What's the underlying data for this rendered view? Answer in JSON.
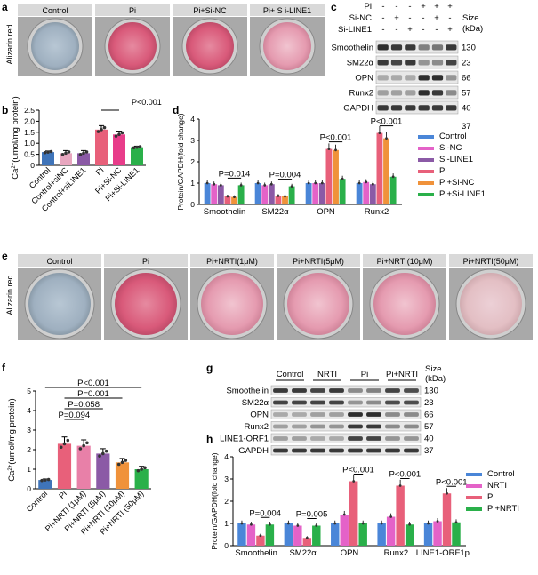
{
  "panels": {
    "a": {
      "letter": "a",
      "ylabel": "Alizarin red",
      "labels": [
        "Control",
        "Pi",
        "Pi+Si-NC",
        "Pi+ S i-LINE1"
      ]
    },
    "b": {
      "letter": "b",
      "ptext": "P<0.001"
    },
    "c": {
      "letter": "c",
      "rows": [
        "Pi",
        "Si-NC",
        "Si-LINE1"
      ],
      "signs": [
        [
          "-",
          "-",
          "-",
          "+",
          "+",
          "+"
        ],
        [
          "-",
          "+",
          "-",
          "-",
          "+",
          "-"
        ],
        [
          "-",
          "-",
          "+",
          "-",
          "-",
          "+"
        ]
      ],
      "size_label": "Size",
      "kda_label": "(kDa)",
      "bands": [
        {
          "name": "Smoothelin",
          "size": "130"
        },
        {
          "name": "SM22α",
          "size": "23"
        },
        {
          "name": "OPN",
          "size": "66"
        },
        {
          "name": "Runx2",
          "size": "57"
        },
        {
          "name": "GAPDH",
          "size": "40"
        }
      ],
      "extra_size": "37"
    },
    "d": {
      "letter": "d",
      "pvals": [
        "P=0.014",
        "P=0.004",
        "P<0.001",
        "P<0.001"
      ]
    },
    "e": {
      "letter": "e",
      "ylabel": "Alizarin red",
      "labels": [
        "Control",
        "Pi",
        "Pi+NRTI(1μM)",
        "Pi+NRTI(5μM)",
        "Pi+NRTI(10μM)",
        "Pi+NRTI(50μM)"
      ]
    },
    "f": {
      "letter": "f",
      "pvals": [
        "P<0.001",
        "P=0.001",
        "P=0.058",
        "P=0.094"
      ]
    },
    "g": {
      "letter": "g",
      "groups": [
        "Control",
        "NRTI",
        "Pi",
        "Pi+NRTI"
      ],
      "size_label": "Size",
      "kda_label": "(kDa)",
      "bands": [
        {
          "name": "Smoothelin",
          "size": "130"
        },
        {
          "name": "SM22α",
          "size": "23"
        },
        {
          "name": "OPN",
          "size": "66"
        },
        {
          "name": "Runx2",
          "size": "57"
        },
        {
          "name": "LINE1-ORF1",
          "size": "40"
        },
        {
          "name": "GAPDH",
          "size": "37"
        }
      ]
    },
    "h": {
      "letter": "h",
      "pvals": [
        "P=0.004",
        "P=0.005",
        "P<0.001",
        "P<0.001",
        "P<0.001"
      ]
    }
  },
  "chart_data": [
    {
      "panel": "b",
      "type": "bar",
      "title": "",
      "ylabel": "Ca2+(umol/mg protein)",
      "categories": [
        "Control",
        "Control+siNC",
        "Control+siLINE1",
        "Pi",
        "Pi+Si-NC",
        "Pi+Si-LINE1"
      ],
      "values": [
        0.6,
        0.55,
        0.55,
        1.62,
        1.4,
        0.82
      ],
      "errors": [
        0.05,
        0.12,
        0.12,
        0.18,
        0.15,
        0.05
      ],
      "colors": [
        "#3f74b9",
        "#e8a6bf",
        "#8b5aa6",
        "#e8607a",
        "#e83c8a",
        "#2ab04a"
      ],
      "yticks": [
        "0",
        "0.5",
        "1.0",
        "1.5",
        "2.0",
        "2.5"
      ],
      "ylim": [
        0,
        2.5
      ]
    },
    {
      "panel": "d",
      "type": "bar",
      "ylabel": "Protein/GAPDH(fold change)",
      "categories": [
        "Smoothelin",
        "SM22α",
        "OPN",
        "Runx2"
      ],
      "series": [
        {
          "name": "Control",
          "values": [
            1.0,
            1.0,
            1.0,
            1.0
          ],
          "color": "#4a86d8"
        },
        {
          "name": "Si-NC",
          "values": [
            0.95,
            0.9,
            1.0,
            1.05
          ],
          "color": "#e462c8"
        },
        {
          "name": "Si-LINE1",
          "values": [
            0.9,
            0.95,
            1.0,
            0.95
          ],
          "color": "#8b5aa6"
        },
        {
          "name": "Pi",
          "values": [
            0.38,
            0.4,
            2.6,
            3.35
          ],
          "color": "#e8607a"
        },
        {
          "name": "Pi+Si-NC",
          "values": [
            0.35,
            0.38,
            2.55,
            3.1
          ],
          "color": "#f0923a"
        },
        {
          "name": "Pi+Si-LINE1",
          "values": [
            0.9,
            0.85,
            1.2,
            1.3
          ],
          "color": "#2ab04a"
        }
      ],
      "yticks": [
        "0",
        "1",
        "2",
        "3",
        "4"
      ],
      "ylim": [
        0,
        4
      ]
    },
    {
      "panel": "f",
      "type": "bar",
      "ylabel": "Ca2+(umol/mg protein)",
      "categories": [
        "Control",
        "Pi",
        "Pi+NRTI (1μM)",
        "Pi+NRTI (5μM)",
        "Pi+NRTI (10μM)",
        "Pi+NRTI (50μM)"
      ],
      "values": [
        0.45,
        2.3,
        2.2,
        1.8,
        1.35,
        1.0
      ],
      "errors": [
        0.05,
        0.35,
        0.3,
        0.25,
        0.2,
        0.15
      ],
      "colors": [
        "#3f74b9",
        "#e8607a",
        "#e880a8",
        "#8b5aa6",
        "#f0923a",
        "#2ab04a"
      ],
      "yticks": [
        "0",
        "1",
        "2",
        "3",
        "4",
        "5"
      ],
      "ylim": [
        0,
        5
      ]
    },
    {
      "panel": "h",
      "type": "bar",
      "ylabel": "Protein/GAPDH(fold change)",
      "categories": [
        "Smoothelin",
        "SM22α",
        "OPN",
        "Runx2",
        "LINE1-ORF1p"
      ],
      "series": [
        {
          "name": "Control",
          "values": [
            1.0,
            1.0,
            1.0,
            1.0,
            1.0
          ],
          "color": "#4a86d8"
        },
        {
          "name": "NRTI",
          "values": [
            0.95,
            0.9,
            1.4,
            1.3,
            1.1
          ],
          "color": "#e462c8"
        },
        {
          "name": "Pi",
          "values": [
            0.45,
            0.35,
            2.9,
            2.7,
            2.35
          ],
          "color": "#e8607a"
        },
        {
          "name": "Pi+NRTI",
          "values": [
            0.95,
            0.9,
            1.0,
            0.95,
            1.05
          ],
          "color": "#2ab04a"
        }
      ],
      "yticks": [
        "0",
        "1",
        "2",
        "3",
        "4"
      ],
      "ylim": [
        0,
        4
      ]
    }
  ]
}
